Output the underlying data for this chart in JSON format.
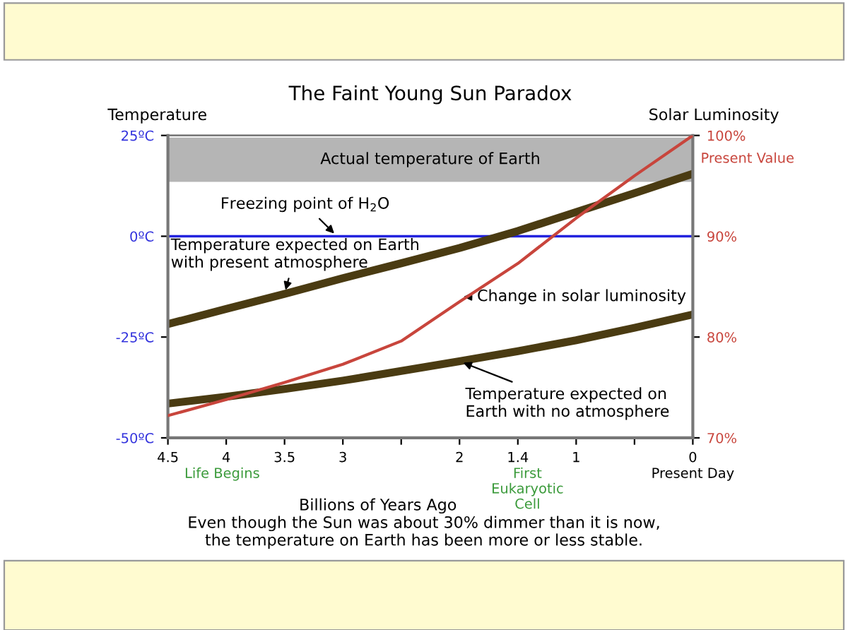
{
  "chart_data": {
    "type": "line",
    "title": "The Faint Young Sun Paradox",
    "xlabel": "Billions of Years Ago",
    "ylabel": "Temperature",
    "y2label": "Solar Luminosity",
    "categories": [
      "4.5",
      "4",
      "3.5",
      "3",
      null,
      "2",
      "1.4",
      "1",
      null,
      "0"
    ],
    "series": [
      {
        "color": "#4a3b12",
        "values": [
          -21.8,
          -18.0,
          -14.3,
          -10.4,
          -6.7,
          -2.9,
          1.3,
          6.0,
          10.7,
          15.5
        ]
      },
      {
        "color": "#4a3b12",
        "values": [
          -41.5,
          -39.8,
          -37.9,
          -35.8,
          -33.4,
          -31.0,
          -28.5,
          -25.8,
          -22.7,
          -19.4
        ]
      },
      {
        "color": "#c8453c",
        "axis": "y2",
        "values": [
          72.2,
          73.8,
          75.5,
          77.3,
          79.6,
          83.5,
          87.3,
          91.8,
          96.0,
          100
        ]
      }
    ],
    "ylim": [
      -50,
      25
    ],
    "yticks": [
      {
        "value": -50,
        "label": "-50ºC"
      },
      {
        "value": -25,
        "label": "-25ºC"
      },
      {
        "value": 0,
        "label": "0ºC"
      },
      {
        "value": 25,
        "label": "25ºC"
      }
    ],
    "y2lim": [
      70,
      100
    ],
    "y2ticks": [
      {
        "value": 70,
        "label": "70%"
      },
      {
        "value": 80,
        "label": "80%"
      },
      {
        "value": 90,
        "label": "90%"
      },
      {
        "value": 100,
        "label": "100%"
      }
    ],
    "ref_lines": [
      {
        "axis": "y",
        "value": 0,
        "label": "Freezing point of H$_{2}$O",
        "color": "#2222dd"
      }
    ],
    "bands": [
      {
        "axis": "y",
        "from": 13.5,
        "to": 24.5,
        "label": "Actual temperature of Earth",
        "color": "#b5b5b5"
      }
    ],
    "annotations": [
      {
        "text": "Temperature expected on Earth\nwith present atmosphere",
        "x": "3.5",
        "y": -14.3
      },
      {
        "text": "Change in solar luminosity",
        "x": "2",
        "y": -15
      },
      {
        "text": "Temperature expected on\nEarth with no atmosphere",
        "x": "2",
        "y": -31.0
      },
      {
        "text": "Present Value",
        "x": "0",
        "y": 25
      },
      "Life Begins",
      "First\nEukaryotic\nCell",
      "Present Day",
      "Even though the Sun was about 30% dimmer than it is now,\nthe temperature on Earth has been more or less stable."
    ],
    "legend": false,
    "grid": false,
    "marker": "none",
    "line_style": "solid"
  }
}
